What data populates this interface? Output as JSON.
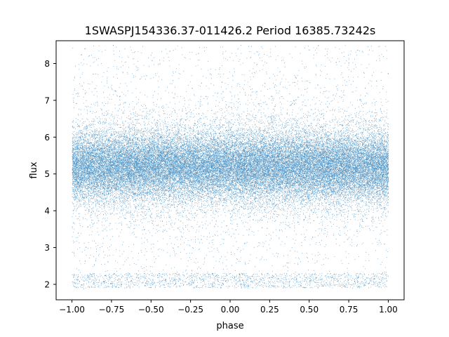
{
  "chart_data": {
    "type": "scatter",
    "title": "1SWASPJ154336.37-011426.2 Period 16385.73242s",
    "xlabel": "phase",
    "ylabel": "flux",
    "xlim": [
      -1.1,
      1.1
    ],
    "ylim": [
      1.58,
      8.62
    ],
    "xticks": [
      -1.0,
      -0.75,
      -0.5,
      -0.25,
      0.0,
      0.25,
      0.5,
      0.75,
      1.0
    ],
    "xtick_labels": [
      "−1.00",
      "−0.75",
      "−0.50",
      "−0.25",
      "0.00",
      "0.25",
      "0.50",
      "0.75",
      "1.00"
    ],
    "yticks": [
      2,
      3,
      4,
      5,
      6,
      7,
      8
    ],
    "ytick_labels": [
      "2",
      "3",
      "4",
      "5",
      "6",
      "7",
      "8"
    ],
    "grid": false,
    "marker_color": "#1f77b4",
    "distribution": {
      "x_range": [
        -1.0,
        1.0
      ],
      "main_band_center": 5.2,
      "main_band_core_range": [
        4.3,
        6.0
      ],
      "main_band_spread_range": [
        3.0,
        7.5
      ],
      "main_band_upper_scatter_max": 8.5,
      "main_band_lower_scatter_min": 2.3,
      "secondary_band_range": [
        1.9,
        2.3
      ]
    }
  }
}
